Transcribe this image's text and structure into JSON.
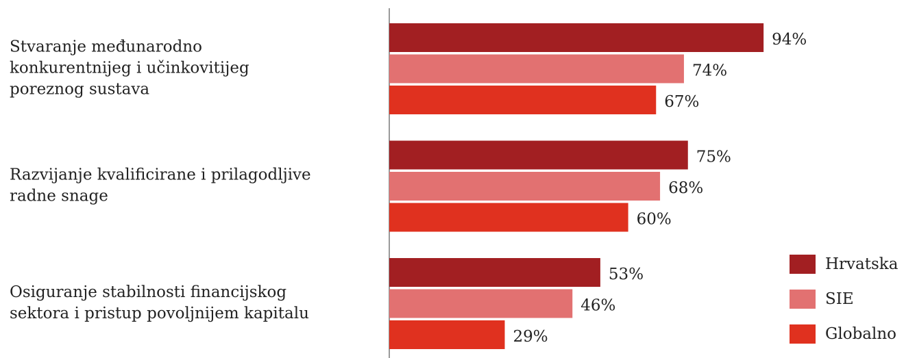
{
  "chart_data": {
    "type": "bar",
    "orientation": "horizontal",
    "categories": [
      [
        "Stvaranje međunarodno",
        "konkurentnijeg i učinkovitijeg",
        "poreznog sustava"
      ],
      [
        "Razvijanje kvalificirane i prilagodljive",
        "radne snage"
      ],
      [
        "Osiguranje stabilnosti financijskog",
        "sektora i pristup povoljnijem kapitalu"
      ]
    ],
    "series": [
      {
        "name": "Hrvatska",
        "color": "#a21f22",
        "values": [
          94,
          75,
          53
        ],
        "value_labels": [
          "94%",
          "75%",
          "53%"
        ]
      },
      {
        "name": "SIE",
        "color": "#e27171",
        "values": [
          74,
          68,
          46
        ],
        "value_labels": [
          "74%",
          "68%",
          "46%"
        ]
      },
      {
        "name": "Globalno",
        "color": "#e0311f",
        "values": [
          67,
          60,
          29
        ],
        "value_labels": [
          "67%",
          "60%",
          "29%"
        ]
      }
    ],
    "legend": "bottom-right"
  }
}
